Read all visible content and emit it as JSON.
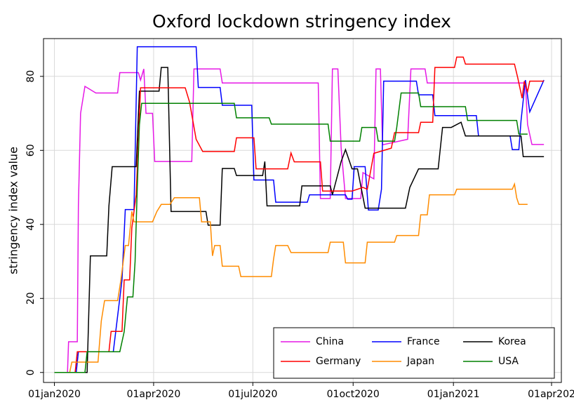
{
  "chart_data": {
    "type": "line",
    "title": "Oxford lockdown stringency index",
    "y_label": "stringency index value",
    "xlim": [
      "2019-12-22",
      "2021-04-10"
    ],
    "xticks": [
      {
        "value": "2020-01-01",
        "label": "01jan2020"
      },
      {
        "value": "2020-04-01",
        "label": "01apr2020"
      },
      {
        "value": "2020-07-01",
        "label": "01jul2020"
      },
      {
        "value": "2020-10-01",
        "label": "01oct2020"
      },
      {
        "value": "2021-01-01",
        "label": "01jan2021"
      },
      {
        "value": "2021-04-01",
        "label": "01apr202"
      }
    ],
    "ylim": [
      -2.7,
      90.2
    ],
    "yticks": [
      0,
      20,
      40,
      60,
      80
    ],
    "grid": true,
    "legend": "lower right",
    "series": [
      {
        "name": "China",
        "color": "#e619e6",
        "x": [
          "2020-01-01",
          "2020-01-13",
          "2020-01-14",
          "2020-01-22",
          "2020-01-23",
          "2020-01-25",
          "2020-01-29",
          "2020-02-08",
          "2020-02-28",
          "2020-03-01",
          "2020-03-18",
          "2020-03-20",
          "2020-03-23",
          "2020-03-25",
          "2020-03-31",
          "2020-04-02",
          "2020-05-06",
          "2020-05-08",
          "2020-06-01",
          "2020-06-03",
          "2020-08-30",
          "2020-09-01",
          "2020-09-10",
          "2020-09-12",
          "2020-09-17",
          "2020-09-20",
          "2020-09-24",
          "2020-10-08",
          "2020-10-10",
          "2020-10-20",
          "2020-10-22",
          "2020-10-26",
          "2020-10-28",
          "2020-11-20",
          "2020-11-23",
          "2020-12-06",
          "2020-12-08",
          "2021-03-08",
          "2021-03-10",
          "2021-03-14",
          "2021-03-25"
        ],
        "values": [
          0,
          0,
          8.3,
          8.3,
          45,
          70,
          77.3,
          75.5,
          75.5,
          81,
          81,
          79,
          82,
          70,
          70,
          57,
          57,
          82,
          82,
          78.2,
          78.2,
          47,
          47,
          82,
          82,
          60.6,
          47,
          47,
          54,
          52.3,
          82,
          82,
          61.5,
          63,
          82,
          82,
          78.2,
          78.2,
          67,
          61.6,
          61.6
        ]
      },
      {
        "name": "France",
        "color": "#0000ff",
        "x": [
          "2020-01-01",
          "2020-01-21",
          "2020-01-23",
          "2020-02-24",
          "2020-03-03",
          "2020-03-06",
          "2020-03-14",
          "2020-03-17",
          "2020-05-10",
          "2020-05-12",
          "2020-06-01",
          "2020-06-03",
          "2020-06-30",
          "2020-07-02",
          "2020-07-20",
          "2020-07-22",
          "2020-08-20",
          "2020-08-22",
          "2020-09-24",
          "2020-09-26",
          "2020-09-30",
          "2020-10-02",
          "2020-10-12",
          "2020-10-15",
          "2020-10-24",
          "2020-10-27",
          "2020-10-29",
          "2020-11-28",
          "2020-11-30",
          "2020-12-13",
          "2020-12-15",
          "2021-01-22",
          "2021-01-24",
          "2021-02-22",
          "2021-02-24",
          "2021-03-02",
          "2021-03-04",
          "2021-03-08",
          "2021-03-12",
          "2021-03-25"
        ],
        "values": [
          0,
          0,
          5.6,
          5.6,
          25,
          44,
          44,
          88,
          88,
          77,
          77,
          72.2,
          72.2,
          52,
          52,
          46,
          46,
          48,
          48,
          46.8,
          46.8,
          55.6,
          55.6,
          43.9,
          43.9,
          49.5,
          78.7,
          78.7,
          75,
          75,
          69.4,
          69.4,
          63.9,
          63.9,
          60.2,
          60.2,
          68,
          79,
          70.4,
          79
        ]
      },
      {
        "name": "Korea",
        "color": "#000000",
        "x": [
          "2020-01-01",
          "2020-01-31",
          "2020-02-03",
          "2020-02-18",
          "2020-02-20",
          "2020-02-23",
          "2020-03-16",
          "2020-03-19",
          "2020-04-06",
          "2020-04-08",
          "2020-04-14",
          "2020-04-17",
          "2020-05-19",
          "2020-05-21",
          "2020-06-01",
          "2020-06-03",
          "2020-06-14",
          "2020-06-16",
          "2020-07-10",
          "2020-07-12",
          "2020-07-14",
          "2020-08-13",
          "2020-08-15",
          "2020-09-10",
          "2020-09-12",
          "2020-09-20",
          "2020-09-24",
          "2020-09-30",
          "2020-10-05",
          "2020-10-12",
          "2020-11-18",
          "2020-11-22",
          "2020-11-30",
          "2020-12-18",
          "2020-12-22",
          "2020-12-30",
          "2021-01-08",
          "2021-01-12",
          "2021-03-04",
          "2021-03-06",
          "2021-03-25"
        ],
        "values": [
          0,
          0,
          31.5,
          31.5,
          45,
          55.6,
          55.6,
          76,
          76,
          82.4,
          82.4,
          43.5,
          43.5,
          39.8,
          39.8,
          55.1,
          55.1,
          53.2,
          53.2,
          57,
          45,
          45,
          50.4,
          50.4,
          48,
          57,
          60.2,
          55,
          55,
          44.4,
          44.4,
          50,
          55,
          55,
          66.2,
          66.2,
          67.6,
          63.9,
          63.9,
          58.3,
          58.3
        ]
      },
      {
        "name": "Germany",
        "color": "#ff0000",
        "x": [
          "2020-01-01",
          "2020-01-20",
          "2020-01-22",
          "2020-02-20",
          "2020-02-22",
          "2020-03-03",
          "2020-03-05",
          "2020-03-10",
          "2020-03-12",
          "2020-03-16",
          "2020-03-20",
          "2020-04-30",
          "2020-05-04",
          "2020-05-10",
          "2020-05-16",
          "2020-06-14",
          "2020-06-16",
          "2020-07-02",
          "2020-07-04",
          "2020-08-02",
          "2020-08-05",
          "2020-08-08",
          "2020-09-01",
          "2020-09-03",
          "2020-09-30",
          "2020-10-10",
          "2020-10-14",
          "2020-10-20",
          "2020-11-05",
          "2020-11-08",
          "2020-11-30",
          "2020-12-02",
          "2020-12-13",
          "2020-12-15",
          "2021-01-02",
          "2021-01-04",
          "2021-01-10",
          "2021-01-12",
          "2021-02-26",
          "2021-03-01",
          "2021-03-05",
          "2021-03-07",
          "2021-03-10",
          "2021-03-12",
          "2021-03-25"
        ],
        "values": [
          0,
          0,
          5.6,
          5.6,
          11.1,
          11.1,
          25,
          25,
          39,
          48,
          76.9,
          76.9,
          73,
          63,
          59.7,
          59.7,
          63.4,
          63.4,
          55,
          55,
          59.3,
          56.9,
          56.9,
          49,
          49,
          50,
          49.5,
          59.2,
          60.6,
          64.8,
          64.8,
          67.6,
          67.6,
          82.4,
          82.4,
          85.2,
          85.2,
          83.3,
          83.3,
          79.6,
          74.1,
          78.7,
          75.9,
          78.7,
          78.7
        ]
      },
      {
        "name": "Japan",
        "color": "#ff8c00",
        "x": [
          "2020-01-01",
          "2020-01-15",
          "2020-01-17",
          "2020-02-10",
          "2020-02-13",
          "2020-02-16",
          "2020-02-28",
          "2020-03-02",
          "2020-03-06",
          "2020-03-09",
          "2020-03-12",
          "2020-03-14",
          "2020-03-31",
          "2020-04-04",
          "2020-04-08",
          "2020-04-16",
          "2020-04-20",
          "2020-05-13",
          "2020-05-15",
          "2020-05-23",
          "2020-05-25",
          "2020-05-27",
          "2020-06-01",
          "2020-06-03",
          "2020-06-18",
          "2020-06-20",
          "2020-07-18",
          "2020-07-20",
          "2020-07-22",
          "2020-08-02",
          "2020-08-05",
          "2020-09-08",
          "2020-09-10",
          "2020-09-22",
          "2020-09-24",
          "2020-10-12",
          "2020-10-14",
          "2020-11-08",
          "2020-11-10",
          "2020-11-30",
          "2020-12-02",
          "2020-12-08",
          "2020-12-10",
          "2021-01-02",
          "2021-01-04",
          "2021-02-24",
          "2021-02-26",
          "2021-02-28",
          "2021-03-02",
          "2021-03-10"
        ],
        "values": [
          0,
          0,
          2.8,
          2.8,
          13.9,
          19.4,
          19.4,
          25,
          34.3,
          34.3,
          43.5,
          40.7,
          40.7,
          43.5,
          45.4,
          45.4,
          47.2,
          47.2,
          40.7,
          40.7,
          31.5,
          34.3,
          34.3,
          28.7,
          28.7,
          25.9,
          25.9,
          30.6,
          34.3,
          34.3,
          32.4,
          32.4,
          35.2,
          35.2,
          29.6,
          29.6,
          35.2,
          35.2,
          37,
          37,
          42.6,
          42.6,
          48,
          48,
          49.5,
          49.5,
          50.9,
          47.2,
          45.4,
          45.4
        ]
      },
      {
        "name": "USA",
        "color": "#008000",
        "x": [
          "2020-01-01",
          "2020-01-29",
          "2020-01-31",
          "2020-03-01",
          "2020-03-05",
          "2020-03-08",
          "2020-03-13",
          "2020-03-15",
          "2020-03-17",
          "2020-03-19",
          "2020-03-21",
          "2020-06-14",
          "2020-06-16",
          "2020-07-16",
          "2020-07-18",
          "2020-09-08",
          "2020-09-10",
          "2020-10-07",
          "2020-10-09",
          "2020-10-22",
          "2020-10-24",
          "2020-11-08",
          "2020-11-10",
          "2020-11-14",
          "2020-11-30",
          "2020-12-02",
          "2021-01-12",
          "2021-01-14",
          "2021-02-28",
          "2021-03-02",
          "2021-03-10"
        ],
        "values": [
          0,
          0,
          5.6,
          5.6,
          11,
          20.4,
          20.4,
          30,
          50,
          67,
          72.7,
          72.7,
          68.8,
          68.8,
          67.1,
          67.1,
          62.5,
          62.5,
          66.2,
          66.2,
          62.5,
          62.5,
          66.2,
          75.5,
          75.5,
          71.8,
          71.8,
          68.1,
          68.1,
          64.4,
          64.4
        ]
      }
    ]
  }
}
